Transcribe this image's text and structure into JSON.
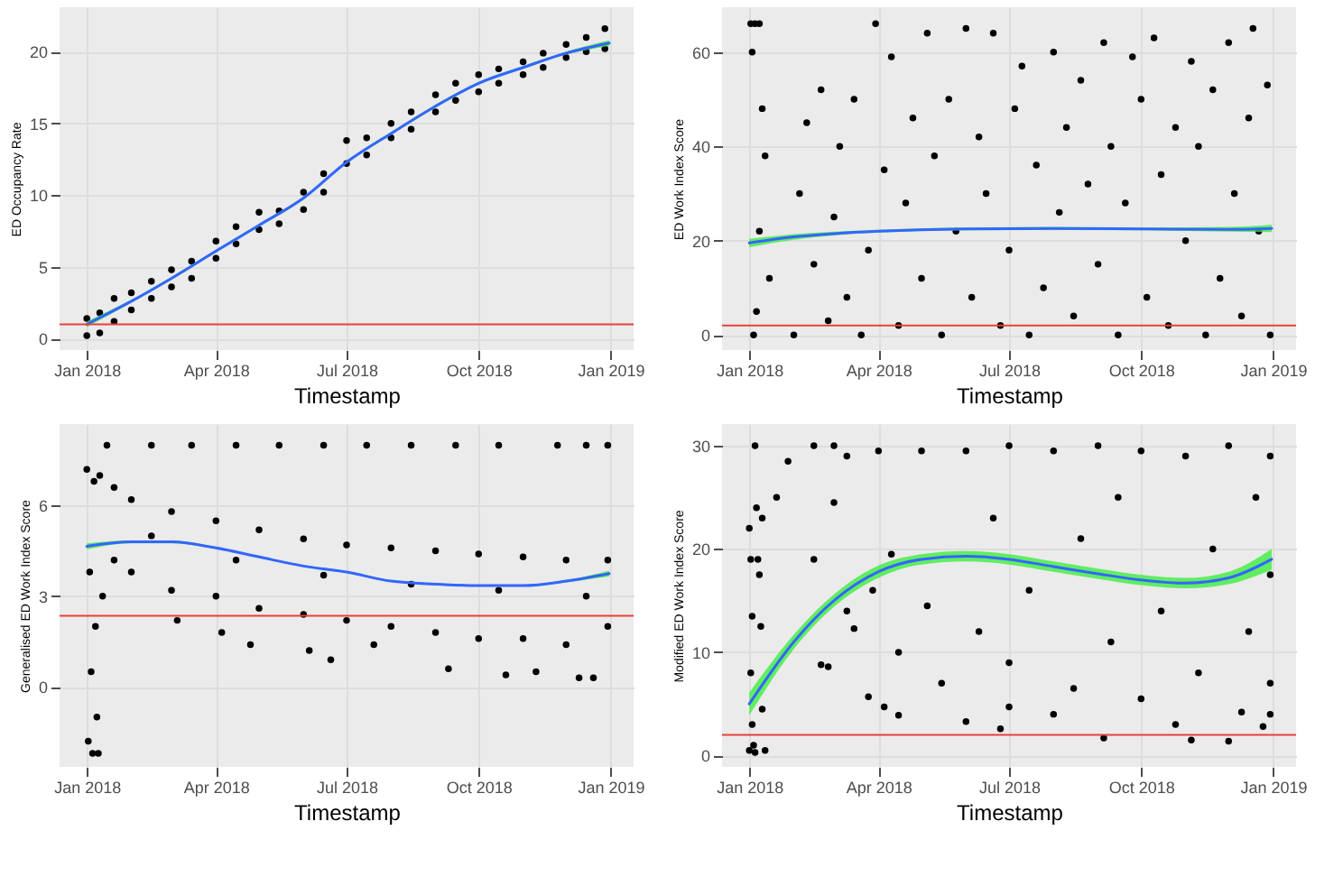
{
  "chart_data": [
    {
      "type": "scatter",
      "xlabel": "Timestamp",
      "ylabel": "ED Occupancy Rate",
      "xlim": [
        "2017-12-13",
        "2019-01-17"
      ],
      "xticks": [
        {
          "value": "2018-01-01",
          "label": "Jan 2018"
        },
        {
          "value": "2018-04-01",
          "label": "Apr 2018"
        },
        {
          "value": "2018-07-01",
          "label": "Jul 2018"
        },
        {
          "value": "2018-10-01",
          "label": "Oct 2018"
        },
        {
          "value": "2019-01-01",
          "label": "Jan 2019"
        }
      ],
      "ylim": [
        -0.8,
        23.1
      ],
      "yticks": [
        0,
        5,
        10,
        15,
        20
      ],
      "grid": true,
      "series": [
        {
          "type": "scatter",
          "marker": "circle",
          "color": "#000000",
          "x": [
            "2018-01-01",
            "2018-01-01",
            "2018-01-10",
            "2018-01-10",
            "2018-01-20",
            "2018-01-20",
            "2018-02-01",
            "2018-02-01",
            "2018-02-15",
            "2018-02-15",
            "2018-03-01",
            "2018-03-01",
            "2018-03-15",
            "2018-03-15",
            "2018-04-01",
            "2018-04-01",
            "2018-04-15",
            "2018-04-15",
            "2018-05-01",
            "2018-05-01",
            "2018-05-15",
            "2018-05-15",
            "2018-06-01",
            "2018-06-01",
            "2018-06-15",
            "2018-06-15",
            "2018-07-01",
            "2018-07-01",
            "2018-07-15",
            "2018-07-15",
            "2018-08-01",
            "2018-08-01",
            "2018-08-15",
            "2018-08-15",
            "2018-09-01",
            "2018-09-01",
            "2018-09-15",
            "2018-09-15",
            "2018-10-01",
            "2018-10-01",
            "2018-10-15",
            "2018-10-15",
            "2018-11-01",
            "2018-11-01",
            "2018-11-15",
            "2018-11-15",
            "2018-12-01",
            "2018-12-01",
            "2018-12-15",
            "2018-12-15",
            "2018-12-28",
            "2018-12-28"
          ],
          "values": [
            0.2,
            1.4,
            0.4,
            1.8,
            1.2,
            2.8,
            2.0,
            3.2,
            2.8,
            4.0,
            3.6,
            4.8,
            4.2,
            5.4,
            5.6,
            6.8,
            6.6,
            7.8,
            7.6,
            8.8,
            8.0,
            8.9,
            9.0,
            10.2,
            10.2,
            11.5,
            12.2,
            13.8,
            12.8,
            14.0,
            14.0,
            15.0,
            14.6,
            15.8,
            15.8,
            17.0,
            16.6,
            17.8,
            17.2,
            18.4,
            17.8,
            18.8,
            18.4,
            19.3,
            18.9,
            19.9,
            19.6,
            20.5,
            20.0,
            21.0,
            20.2,
            21.6
          ]
        },
        {
          "type": "line",
          "marker": "none",
          "color": "#3366ff",
          "x": [
            "2018-01-01",
            "2018-02-01",
            "2018-03-01",
            "2018-04-01",
            "2018-05-01",
            "2018-06-01",
            "2018-07-01",
            "2018-08-01",
            "2018-09-01",
            "2018-10-01",
            "2018-11-01",
            "2018-12-01",
            "2018-12-31"
          ],
          "values": [
            1.0,
            2.6,
            4.2,
            6.1,
            7.9,
            9.8,
            12.3,
            14.3,
            16.2,
            17.8,
            18.9,
            19.9,
            20.6
          ],
          "lower": [
            0.8,
            2.5,
            4.1,
            6.0,
            7.8,
            9.7,
            12.2,
            14.2,
            16.1,
            17.7,
            18.8,
            19.8,
            20.4
          ],
          "upper": [
            1.2,
            2.7,
            4.3,
            6.2,
            8.0,
            9.9,
            12.4,
            14.4,
            16.3,
            17.9,
            19.0,
            20.0,
            20.8
          ]
        }
      ],
      "ref_lines": [
        {
          "axis": "y",
          "value": 1,
          "color": "#e8403a"
        }
      ]
    },
    {
      "type": "scatter",
      "xlabel": "Timestamp",
      "ylabel": "ED Work Index Score",
      "xlim": [
        "2017-12-13",
        "2019-01-17"
      ],
      "xticks": [
        {
          "value": "2018-01-01",
          "label": "Jan 2018"
        },
        {
          "value": "2018-04-01",
          "label": "Apr 2018"
        },
        {
          "value": "2018-07-01",
          "label": "Jul 2018"
        },
        {
          "value": "2018-10-01",
          "label": "Oct 2018"
        },
        {
          "value": "2019-01-01",
          "label": "Jan 2019"
        }
      ],
      "ylim": [
        -3.2,
        69.5
      ],
      "yticks": [
        0,
        20,
        40,
        60
      ],
      "grid": true,
      "series": [
        {
          "type": "scatter",
          "marker": "circle",
          "color": "#000000",
          "x": [
            "2018-01-02",
            "2018-01-05",
            "2018-01-08",
            "2018-01-03",
            "2018-01-04",
            "2018-01-06",
            "2018-01-08",
            "2018-01-10",
            "2018-01-12",
            "2018-01-15",
            "2018-02-01",
            "2018-02-05",
            "2018-02-10",
            "2018-02-15",
            "2018-02-20",
            "2018-02-25",
            "2018-03-01",
            "2018-03-05",
            "2018-03-10",
            "2018-03-15",
            "2018-03-20",
            "2018-03-30",
            "2018-03-25",
            "2018-04-05",
            "2018-04-10",
            "2018-04-15",
            "2018-04-20",
            "2018-04-25",
            "2018-05-01",
            "2018-05-05",
            "2018-05-10",
            "2018-05-15",
            "2018-05-20",
            "2018-05-25",
            "2018-06-01",
            "2018-06-05",
            "2018-06-10",
            "2018-06-15",
            "2018-06-20",
            "2018-06-25",
            "2018-07-01",
            "2018-07-05",
            "2018-07-10",
            "2018-07-15",
            "2018-07-20",
            "2018-07-25",
            "2018-08-01",
            "2018-08-05",
            "2018-08-10",
            "2018-08-15",
            "2018-08-20",
            "2018-08-25",
            "2018-09-01",
            "2018-09-05",
            "2018-09-10",
            "2018-09-15",
            "2018-09-20",
            "2018-09-25",
            "2018-10-01",
            "2018-10-05",
            "2018-10-10",
            "2018-10-15",
            "2018-10-20",
            "2018-10-25",
            "2018-11-01",
            "2018-11-05",
            "2018-11-10",
            "2018-11-15",
            "2018-11-20",
            "2018-11-25",
            "2018-12-01",
            "2018-12-05",
            "2018-12-10",
            "2018-12-15",
            "2018-12-18",
            "2018-12-22",
            "2018-12-28",
            "2018-12-30"
          ],
          "values": [
            66,
            66,
            66,
            60,
            0,
            5,
            22,
            48,
            38,
            12,
            0,
            30,
            45,
            15,
            52,
            3,
            25,
            40,
            8,
            50,
            0,
            66,
            18,
            35,
            59,
            2,
            28,
            46,
            12,
            64,
            38,
            0,
            50,
            22,
            65,
            8,
            42,
            30,
            64,
            2,
            18,
            48,
            57,
            0,
            36,
            10,
            60,
            26,
            44,
            4,
            54,
            32,
            15,
            62,
            40,
            0,
            28,
            59,
            50,
            8,
            63,
            34,
            2,
            44,
            20,
            58,
            40,
            0,
            52,
            12,
            62,
            30,
            4,
            46,
            65,
            22,
            53,
            0
          ]
        },
        {
          "type": "line",
          "marker": "none",
          "color": "#3366ff",
          "x": [
            "2018-01-01",
            "2018-02-01",
            "2018-03-01",
            "2018-04-01",
            "2018-06-01",
            "2018-08-01",
            "2018-10-01",
            "2018-12-01",
            "2018-12-31"
          ],
          "values": [
            19.5,
            20.8,
            21.5,
            22.0,
            22.5,
            22.6,
            22.5,
            22.4,
            22.6
          ],
          "lower": [
            18.6,
            20.2,
            21.1,
            21.7,
            22.2,
            22.3,
            22.2,
            21.9,
            21.8
          ],
          "upper": [
            20.4,
            21.4,
            21.9,
            22.3,
            22.8,
            22.9,
            22.8,
            22.9,
            23.4
          ]
        }
      ],
      "ref_lines": [
        {
          "axis": "y",
          "value": 2,
          "color": "#e8403a"
        }
      ]
    },
    {
      "type": "scatter",
      "xlabel": "Timestamp",
      "ylabel": "Generalised ED Work Index Score",
      "xlim": [
        "2017-12-13",
        "2019-01-17"
      ],
      "xticks": [
        {
          "value": "2018-01-01",
          "label": "Jan 2018"
        },
        {
          "value": "2018-04-01",
          "label": "Apr 2018"
        },
        {
          "value": "2018-07-01",
          "label": "Jul 2018"
        },
        {
          "value": "2018-10-01",
          "label": "Oct 2018"
        },
        {
          "value": "2019-01-01",
          "label": "Jan 2019"
        }
      ],
      "ylim": [
        -2.65,
        8.7
      ],
      "yticks": [
        0,
        3,
        6
      ],
      "grid": true,
      "series": [
        {
          "type": "scatter",
          "marker": "circle",
          "color": "#000000",
          "x": [
            "2018-01-15",
            "2018-02-15",
            "2018-03-15",
            "2018-04-15",
            "2018-05-15",
            "2018-06-15",
            "2018-07-15",
            "2018-08-15",
            "2018-09-15",
            "2018-10-15",
            "2018-11-25",
            "2018-12-15",
            "2018-12-30",
            "2018-01-01",
            "2018-01-02",
            "2018-01-03",
            "2018-01-04",
            "2018-01-05",
            "2018-01-06",
            "2018-01-07",
            "2018-01-08",
            "2018-01-09",
            "2018-01-10",
            "2018-01-12",
            "2018-01-20",
            "2018-01-20",
            "2018-02-01",
            "2018-02-01",
            "2018-03-01",
            "2018-03-01",
            "2018-03-05",
            "2018-04-01",
            "2018-04-01",
            "2018-04-05",
            "2018-04-25",
            "2018-05-01",
            "2018-05-01",
            "2018-06-01",
            "2018-06-01",
            "2018-06-05",
            "2018-06-20",
            "2018-07-01",
            "2018-07-01",
            "2018-07-20",
            "2018-08-01",
            "2018-08-01",
            "2018-09-01",
            "2018-09-01",
            "2018-09-10",
            "2018-10-01",
            "2018-10-01",
            "2018-10-20",
            "2018-11-01",
            "2018-11-01",
            "2018-11-10",
            "2018-12-01",
            "2018-12-01",
            "2018-12-10",
            "2018-12-20",
            "2018-12-30",
            "2018-12-30",
            "2018-02-15",
            "2018-04-15",
            "2018-06-15",
            "2018-08-15",
            "2018-10-15",
            "2018-12-15"
          ],
          "values": [
            8.0,
            8.0,
            8.0,
            8.0,
            8.0,
            8.0,
            8.0,
            8.0,
            8.0,
            8.0,
            8.0,
            8.0,
            8.0,
            7.2,
            -1.8,
            3.8,
            0.5,
            -2.2,
            6.8,
            2.0,
            -1.0,
            -2.2,
            7.0,
            3.0,
            6.6,
            4.2,
            6.2,
            3.8,
            5.8,
            3.2,
            2.2,
            5.5,
            3.0,
            1.8,
            1.4,
            5.2,
            2.6,
            4.9,
            2.4,
            1.2,
            0.9,
            4.7,
            2.2,
            1.4,
            4.6,
            2.0,
            4.5,
            1.8,
            0.6,
            4.4,
            1.6,
            0.4,
            4.3,
            1.6,
            0.5,
            4.2,
            1.4,
            0.3,
            0.3,
            4.2,
            2.0,
            5.0,
            4.2,
            3.7,
            3.4,
            3.2,
            3.0
          ]
        },
        {
          "type": "line",
          "marker": "none",
          "color": "#3366ff",
          "x": [
            "2018-01-01",
            "2018-02-01",
            "2018-03-01",
            "2018-04-01",
            "2018-05-01",
            "2018-06-01",
            "2018-07-01",
            "2018-08-01",
            "2018-09-01",
            "2018-10-01",
            "2018-11-01",
            "2018-12-01",
            "2018-12-31"
          ],
          "values": [
            4.65,
            4.8,
            4.8,
            4.6,
            4.3,
            4.0,
            3.8,
            3.5,
            3.4,
            3.35,
            3.35,
            3.5,
            3.75
          ],
          "lower": [
            4.55,
            4.75,
            4.75,
            4.57,
            4.27,
            3.97,
            3.77,
            3.47,
            3.37,
            3.32,
            3.32,
            3.46,
            3.65
          ],
          "upper": [
            4.75,
            4.85,
            4.85,
            4.63,
            4.33,
            4.03,
            3.83,
            3.53,
            3.43,
            3.38,
            3.38,
            3.54,
            3.85
          ]
        }
      ],
      "ref_lines": [
        {
          "axis": "y",
          "value": 2.35,
          "color": "#e8403a"
        }
      ]
    },
    {
      "type": "scatter",
      "xlabel": "Timestamp",
      "ylabel": "Modified ED Work Index Score",
      "xlim": [
        "2017-12-13",
        "2019-01-17"
      ],
      "xticks": [
        {
          "value": "2018-01-01",
          "label": "Jan 2018"
        },
        {
          "value": "2018-04-01",
          "label": "Apr 2018"
        },
        {
          "value": "2018-07-01",
          "label": "Jul 2018"
        },
        {
          "value": "2018-10-01",
          "label": "Oct 2018"
        },
        {
          "value": "2019-01-01",
          "label": "Jan 2019"
        }
      ],
      "ylim": [
        -1.1,
        32.1
      ],
      "yticks": [
        0,
        10,
        20,
        30
      ],
      "grid": true,
      "series": [
        {
          "type": "scatter",
          "marker": "circle",
          "color": "#000000",
          "x": [
            "2018-01-01",
            "2018-01-01",
            "2018-01-02",
            "2018-01-02",
            "2018-01-03",
            "2018-01-03",
            "2018-01-04",
            "2018-01-05",
            "2018-01-05",
            "2018-01-06",
            "2018-01-07",
            "2018-01-08",
            "2018-01-09",
            "2018-01-10",
            "2018-01-10",
            "2018-01-12",
            "2018-01-20",
            "2018-01-28",
            "2018-02-15",
            "2018-02-15",
            "2018-02-20",
            "2018-02-25",
            "2018-03-01",
            "2018-03-01",
            "2018-03-10",
            "2018-03-10",
            "2018-03-15",
            "2018-03-25",
            "2018-03-28",
            "2018-04-01",
            "2018-04-05",
            "2018-04-10",
            "2018-04-15",
            "2018-04-15",
            "2018-05-01",
            "2018-05-05",
            "2018-05-15",
            "2018-06-01",
            "2018-06-01",
            "2018-06-10",
            "2018-06-20",
            "2018-06-25",
            "2018-07-01",
            "2018-07-01",
            "2018-07-01",
            "2018-07-15",
            "2018-08-01",
            "2018-08-01",
            "2018-08-15",
            "2018-08-20",
            "2018-09-01",
            "2018-09-05",
            "2018-09-10",
            "2018-09-15",
            "2018-10-01",
            "2018-10-01",
            "2018-10-15",
            "2018-10-25",
            "2018-11-01",
            "2018-11-05",
            "2018-11-10",
            "2018-11-20",
            "2018-12-01",
            "2018-12-01",
            "2018-12-10",
            "2018-12-15",
            "2018-12-20",
            "2018-12-25",
            "2018-12-30",
            "2018-12-30",
            "2018-12-30",
            "2018-12-30"
          ],
          "values": [
            22,
            0.5,
            19,
            8,
            13.5,
            3,
            1,
            30,
            0.3,
            24,
            19,
            17.5,
            12.5,
            4.5,
            23,
            0.5,
            25,
            28.5,
            30,
            19,
            8.8,
            8.6,
            24.5,
            30,
            29,
            14,
            12.3,
            5.7,
            16,
            29.5,
            4.7,
            19.5,
            10,
            3.9,
            29.5,
            14.5,
            7,
            29.5,
            3.3,
            12,
            23,
            2.6,
            30,
            4.7,
            9,
            16,
            29.5,
            4.0,
            6.5,
            21,
            30,
            1.7,
            11,
            25,
            29.5,
            5.5,
            14,
            3.0,
            29,
            1.5,
            8,
            20,
            30,
            1.4,
            4.2,
            12,
            25,
            2.8,
            29,
            17.5,
            7,
            4
          ]
        },
        {
          "type": "line",
          "marker": "none",
          "color": "#3366ff",
          "x": [
            "2018-01-01",
            "2018-02-01",
            "2018-03-01",
            "2018-04-01",
            "2018-05-01",
            "2018-06-01",
            "2018-07-01",
            "2018-08-01",
            "2018-09-01",
            "2018-10-01",
            "2018-11-01",
            "2018-12-01",
            "2018-12-31"
          ],
          "values": [
            5.0,
            11.0,
            15.0,
            17.8,
            19.0,
            19.3,
            19.0,
            18.3,
            17.6,
            17.0,
            16.7,
            17.2,
            19.0
          ],
          "lower": [
            3.9,
            10.3,
            14.4,
            17.2,
            18.5,
            18.8,
            18.5,
            17.8,
            17.1,
            16.5,
            16.2,
            16.6,
            18.0
          ],
          "upper": [
            6.1,
            11.7,
            15.6,
            18.4,
            19.5,
            19.8,
            19.5,
            18.8,
            18.1,
            17.5,
            17.2,
            17.8,
            20.0
          ]
        }
      ],
      "ref_lines": [
        {
          "axis": "y",
          "value": 2,
          "color": "#e8403a"
        }
      ]
    }
  ]
}
